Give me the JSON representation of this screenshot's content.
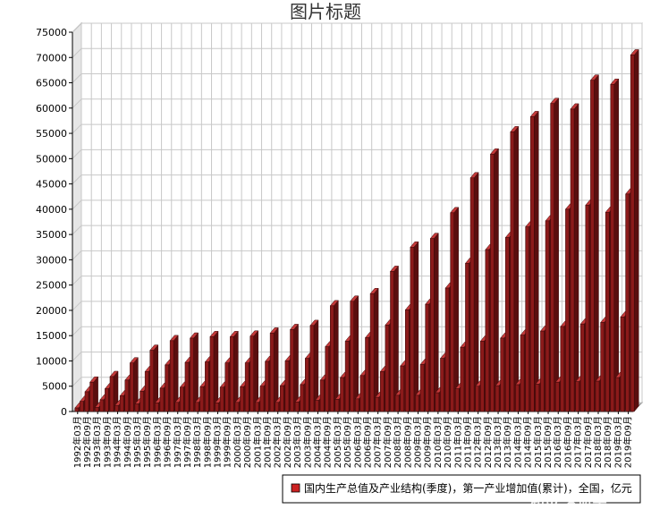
{
  "chart_data": {
    "type": "bar",
    "title": "图片标题",
    "xlabel": "",
    "ylabel": "",
    "ylim": [
      0,
      75000
    ],
    "yticks": [
      0,
      5000,
      10000,
      15000,
      20000,
      25000,
      30000,
      35000,
      40000,
      45000,
      50000,
      55000,
      60000,
      65000,
      70000,
      75000
    ],
    "categories": [
      "1992年03月",
      "1992年06月",
      "1992年09月",
      "1992年12月",
      "1993年03月",
      "1993年06月",
      "1993年09月",
      "1993年12月",
      "1994年03月",
      "1994年06月",
      "1994年09月",
      "1994年12月",
      "1995年03月",
      "1995年06月",
      "1995年09月",
      "1995年12月",
      "1996年03月",
      "1996年06月",
      "1996年09月",
      "1996年12月",
      "1997年03月",
      "1997年06月",
      "1997年09月",
      "1997年12月",
      "1998年03月",
      "1998年06月",
      "1998年09月",
      "1998年12月",
      "1999年03月",
      "1999年06月",
      "1999年09月",
      "1999年12月",
      "2000年03月",
      "2000年06月",
      "2000年09月",
      "2000年12月",
      "2001年03月",
      "2001年06月",
      "2001年09月",
      "2001年12月",
      "2002年03月",
      "2002年06月",
      "2002年09月",
      "2002年12月",
      "2003年03月",
      "2003年06月",
      "2003年09月",
      "2003年12月",
      "2004年03月",
      "2004年06月",
      "2004年09月",
      "2004年12月",
      "2005年03月",
      "2005年06月",
      "2005年09月",
      "2005年12月",
      "2006年03月",
      "2006年06月",
      "2006年09月",
      "2006年12月",
      "2007年03月",
      "2007年06月",
      "2007年09月",
      "2007年12月",
      "2008年03月",
      "2008年06月",
      "2008年09月",
      "2008年12月",
      "2009年03月",
      "2009年06月",
      "2009年09月",
      "2009年12月",
      "2010年03月",
      "2010年06月",
      "2010年09月",
      "2010年12月",
      "2011年03月",
      "2011年06月",
      "2011年09月",
      "2011年12月",
      "2012年03月",
      "2012年06月",
      "2012年09月",
      "2012年12月",
      "2013年03月",
      "2013年06月",
      "2013年09月",
      "2013年12月",
      "2014年03月",
      "2014年06月",
      "2014年09月",
      "2014年12月",
      "2015年03月",
      "2015年06月",
      "2015年09月",
      "2015年12月",
      "2016年03月",
      "2016年06月",
      "2016年09月",
      "2016年12月",
      "2017年03月",
      "2017年06月",
      "2017年09月",
      "2017年12月",
      "2018年03月",
      "2018年06月",
      "2018年09月",
      "2018年12月",
      "2019年03月",
      "2019年06月",
      "2019年09月",
      "2019年12月"
    ],
    "series": [
      {
        "name": "国内生产总值及产业结构(季度)，第一产业增加值(累计)，全国，亿元",
        "color": "#8B1A1A",
        "values": [
          700,
          2000,
          3900,
          5800,
          800,
          2300,
          4500,
          6900,
          1200,
          3100,
          6200,
          9600,
          1500,
          4000,
          7900,
          12100,
          1700,
          4600,
          9200,
          14000,
          1800,
          4800,
          9700,
          14500,
          1800,
          4900,
          9800,
          14800,
          1700,
          4800,
          9600,
          14800,
          1800,
          4900,
          9600,
          14900,
          1800,
          5000,
          9900,
          15500,
          1800,
          5100,
          10000,
          16200,
          1900,
          5300,
          10500,
          17000,
          2200,
          6200,
          12800,
          20900,
          2400,
          6700,
          13900,
          21800,
          2500,
          7100,
          14600,
          23300,
          2800,
          7900,
          17100,
          27700,
          3200,
          9000,
          20100,
          32500,
          3200,
          9300,
          21200,
          34200,
          3700,
          10500,
          24400,
          39300,
          4500,
          12700,
          29300,
          46200,
          5000,
          13900,
          32000,
          50900,
          5100,
          14500,
          34400,
          55300,
          5300,
          15100,
          36500,
          58300,
          5400,
          15900,
          37700,
          60900,
          5800,
          16800,
          40000,
          59800,
          5900,
          17300,
          40800,
          65500,
          6000,
          17600,
          39400,
          64700,
          6700,
          18700,
          43000,
          70500
        ]
      }
    ],
    "legend": {
      "position": "bottom-right"
    },
    "grid": true
  },
  "watermark": "知乎 @股市"
}
